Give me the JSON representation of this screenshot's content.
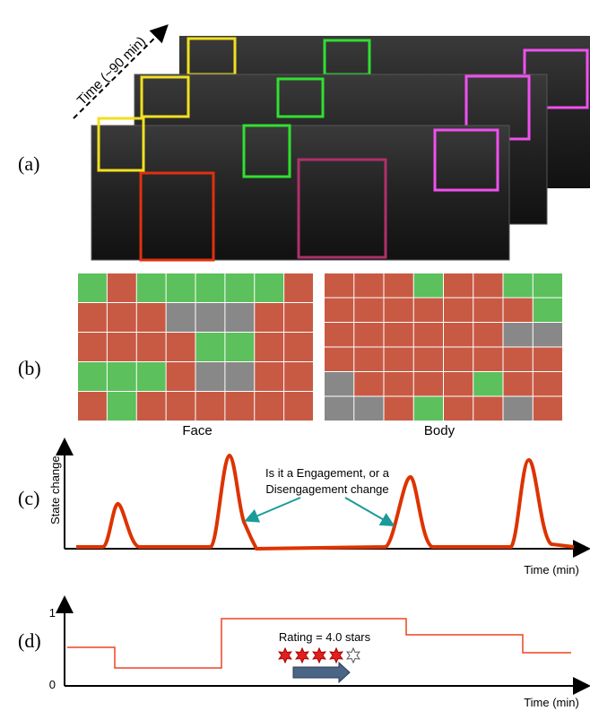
{
  "panel_a": {
    "label": "(a)",
    "time_label": "Time (~90 min)"
  },
  "panel_b": {
    "label": "(b)",
    "face_label": "Face",
    "body_label": "Body"
  },
  "panel_c": {
    "label": "(c)",
    "y_label": "State change",
    "question": [
      "Is it a Engagement, or a",
      "Disengagement change"
    ],
    "x_label": "Time (min)"
  },
  "panel_d": {
    "label": "(d)",
    "y_tick_top": "1",
    "y_tick_bottom": "0",
    "rating": "Rating = 4.0 stars",
    "x_label": "Time (min)"
  }
}
